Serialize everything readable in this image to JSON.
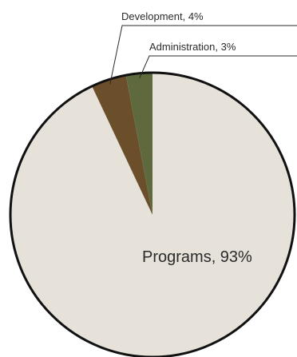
{
  "chart_data": {
    "type": "pie",
    "slices": [
      {
        "label": "Programs",
        "value": 93,
        "color": "#e6e2da",
        "label_text": "Programs, 93%"
      },
      {
        "label": "Development",
        "value": 4,
        "color": "#6b4f2a",
        "label_text": "Development, 4%"
      },
      {
        "label": "Administration",
        "value": 3,
        "color": "#5e6a3e",
        "label_text": "Administration, 3%"
      }
    ],
    "border_color": "#111111",
    "start_angle_deg": 0,
    "direction": "counterclockwise"
  }
}
